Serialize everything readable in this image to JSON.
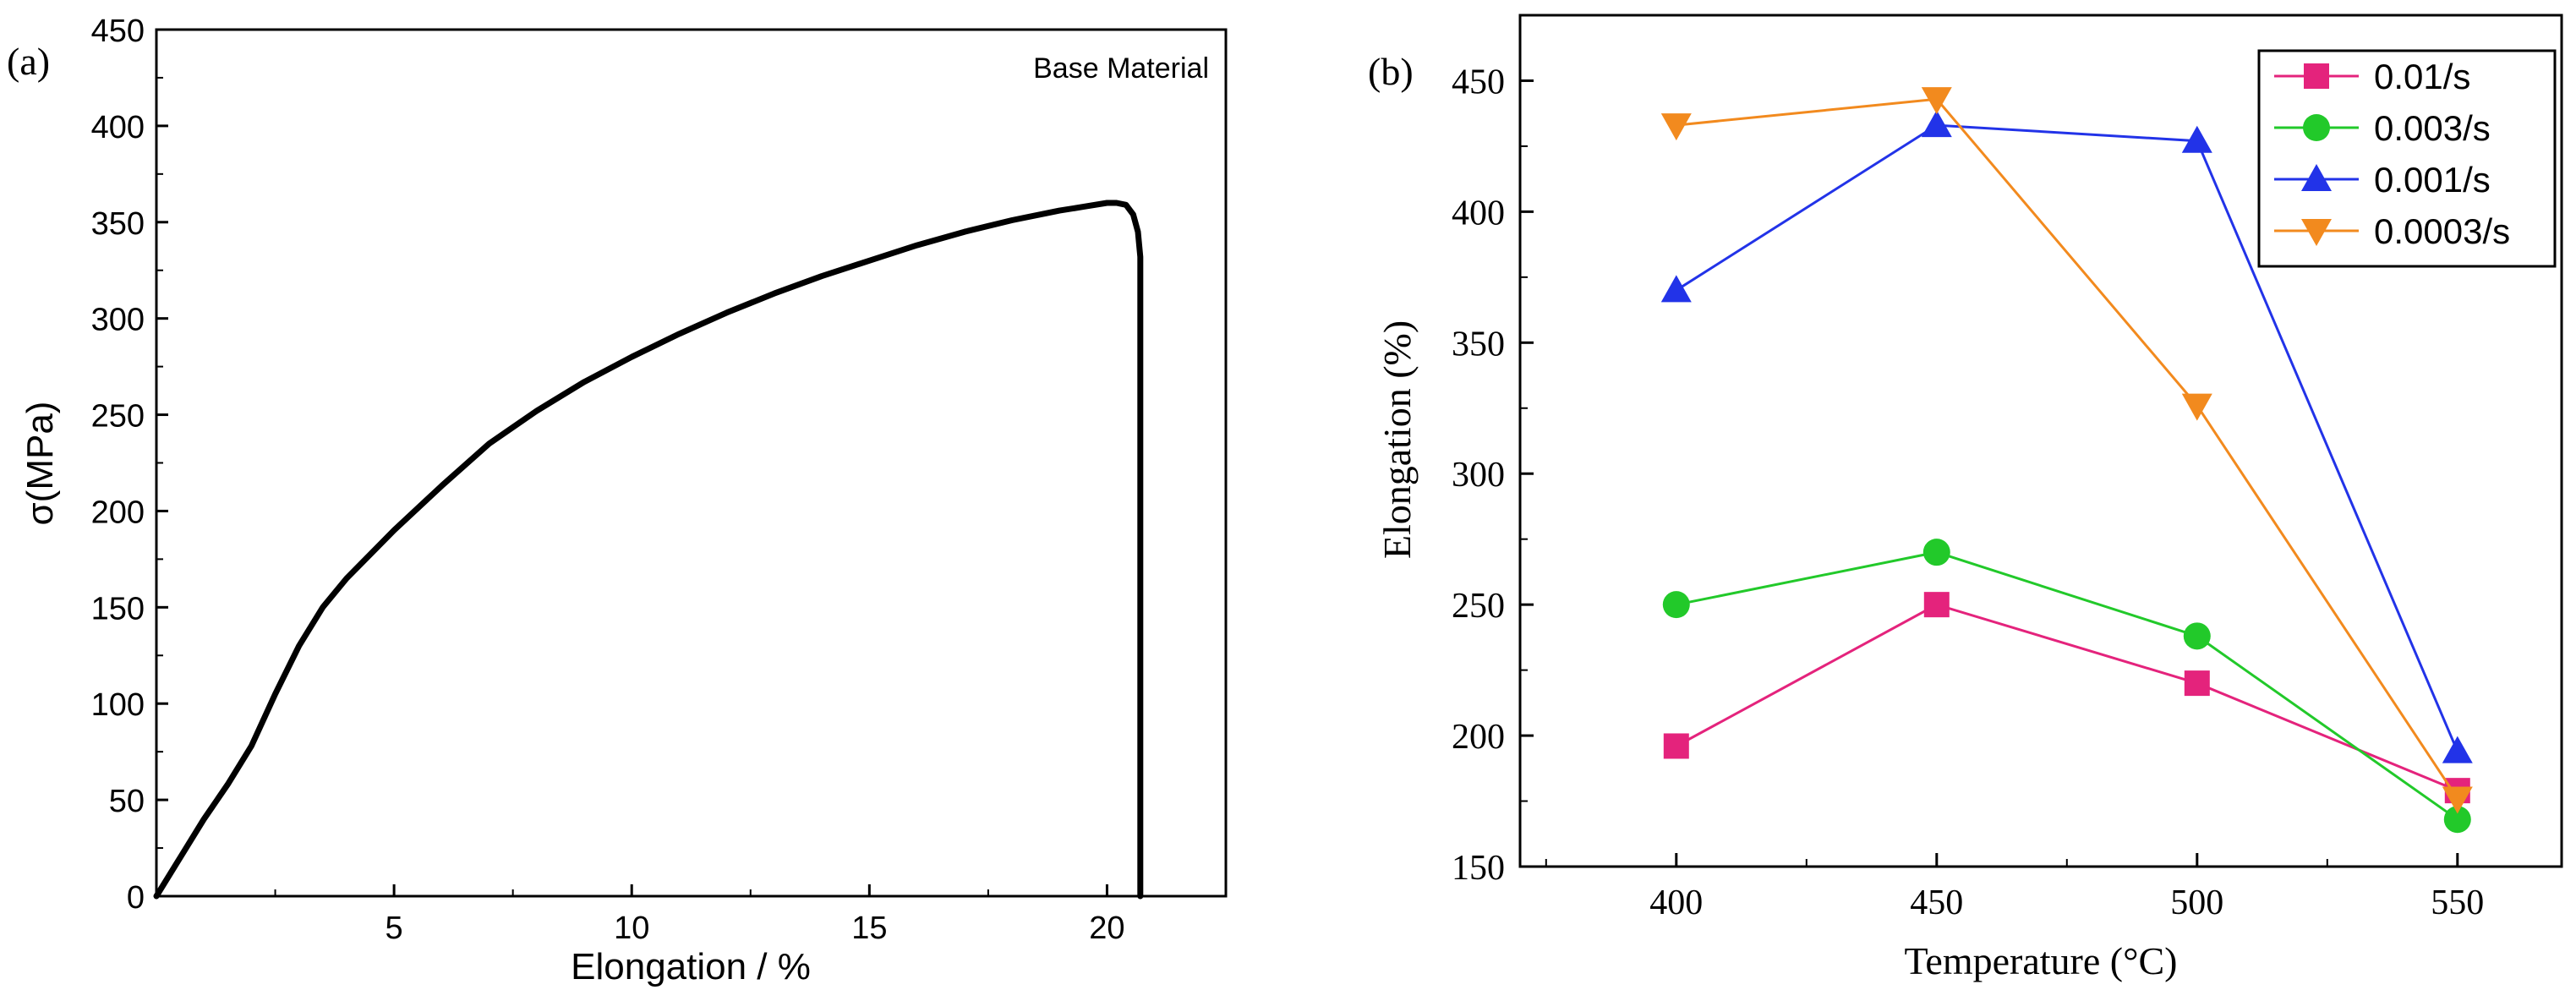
{
  "chart_data": [
    {
      "panel_label": "(a)",
      "type": "line",
      "title": "",
      "annotation": "Base Material",
      "xlabel": "Elongation / %",
      "ylabel": "σ(MPa)",
      "xlim": [
        0,
        22.5
      ],
      "ylim": [
        0,
        450
      ],
      "x_ticks": [
        5,
        10,
        15,
        20
      ],
      "x_tick_labels": [
        "5",
        "10",
        "15",
        "20"
      ],
      "y_ticks": [
        0,
        50,
        100,
        150,
        200,
        250,
        300,
        350,
        400,
        450
      ],
      "y_tick_labels": [
        "0",
        "50",
        "100",
        "150",
        "200",
        "250",
        "300",
        "350",
        "400",
        "450"
      ],
      "grid": false,
      "color": "#000000",
      "series": [
        {
          "name": "Base Material",
          "x": [
            0,
            0.5,
            1.0,
            1.5,
            2.0,
            2.5,
            3.0,
            3.5,
            4.0,
            5.0,
            6.0,
            7.0,
            8.0,
            9.0,
            10.0,
            11.0,
            12.0,
            13.0,
            14.0,
            15.0,
            16.0,
            17.0,
            18.0,
            19.0,
            19.5,
            20.0,
            20.2,
            20.4,
            20.55,
            20.65,
            20.7,
            20.7
          ],
          "y": [
            0,
            20,
            40,
            58,
            78,
            105,
            130,
            150,
            165,
            190,
            213,
            235,
            252,
            267,
            280,
            292,
            303,
            313,
            322,
            330,
            338,
            345,
            351,
            356,
            358,
            360,
            360,
            359,
            354,
            345,
            332,
            0
          ]
        }
      ]
    },
    {
      "panel_label": "(b)",
      "type": "line",
      "title": "",
      "xlabel": "Temperature (°C)",
      "ylabel": "Elongation (%)",
      "xlim": [
        370,
        570
      ],
      "ylim": [
        150,
        475
      ],
      "x_ticks": [
        400,
        450,
        500,
        550
      ],
      "x_tick_labels": [
        "400",
        "450",
        "500",
        "550"
      ],
      "y_ticks": [
        150,
        200,
        250,
        300,
        350,
        400,
        450
      ],
      "y_tick_labels": [
        "150",
        "200",
        "250",
        "300",
        "350",
        "400",
        "450"
      ],
      "grid": false,
      "legend_position": "top-right",
      "x": [
        400,
        450,
        500,
        550
      ],
      "series": [
        {
          "name": "0.01/s",
          "values": [
            196,
            250,
            220,
            179
          ],
          "color": "#e4237c",
          "marker": "square"
        },
        {
          "name": "0.003/s",
          "values": [
            250,
            270,
            238,
            168
          ],
          "color": "#22c92a",
          "marker": "circle"
        },
        {
          "name": "0.001/s",
          "values": [
            370,
            433,
            427,
            194
          ],
          "color": "#2233e8",
          "marker": "triangle-up"
        },
        {
          "name": "0.0003/s",
          "values": [
            433,
            443,
            326,
            176
          ],
          "color": "#f28a1e",
          "marker": "triangle-down"
        }
      ]
    }
  ]
}
